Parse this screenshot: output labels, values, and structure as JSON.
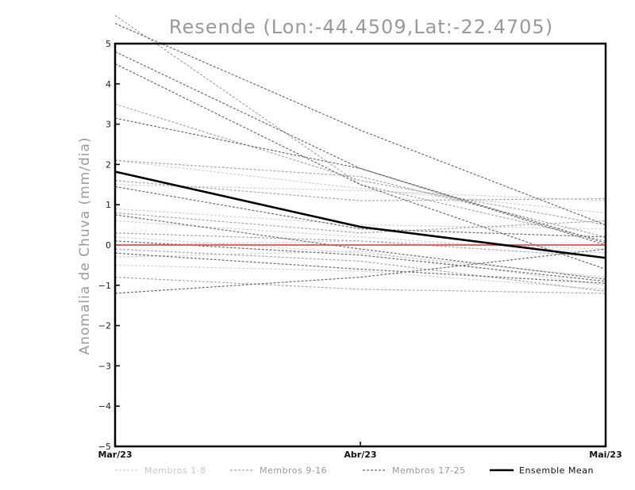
{
  "chart_data": {
    "type": "line",
    "title": "Resende (Lon:-44.4509,Lat:-22.4705)",
    "ylabel": "Anomalia de Chuva (mm/dia)",
    "xlabel": "",
    "categories": [
      "Mar/23",
      "Abr/23",
      "Mai/23"
    ],
    "ylim": [
      -5,
      5
    ],
    "yticks": [
      -5,
      -4,
      -3,
      -2,
      -1,
      0,
      1,
      2,
      3,
      4,
      5
    ],
    "zero_line_color": "#e05050",
    "legend_position": "bottom",
    "groups": [
      {
        "name": "Membros 1-8",
        "color": "#d2d2d2"
      },
      {
        "name": "Membros 9-16",
        "color": "#a9a9a9"
      },
      {
        "name": "Membros 17-25",
        "color": "#6e6e6e"
      },
      {
        "name": "Ensemble Mean",
        "color": "#000000"
      }
    ],
    "series": [
      {
        "group": 0,
        "values": [
          2.1,
          1.4,
          0.8
        ]
      },
      {
        "group": 0,
        "values": [
          1.5,
          1.35,
          1.1
        ]
      },
      {
        "group": 0,
        "values": [
          0.9,
          0.5,
          0.4
        ]
      },
      {
        "group": 0,
        "values": [
          0.6,
          0.2,
          -0.2
        ]
      },
      {
        "group": 0,
        "values": [
          0.0,
          0.1,
          -0.1
        ]
      },
      {
        "group": 0,
        "values": [
          -0.3,
          -0.15,
          -1.0
        ]
      },
      {
        "group": 0,
        "values": [
          -0.5,
          -0.65,
          -1.1
        ]
      },
      {
        "group": 0,
        "values": [
          0.2,
          -0.2,
          -0.8
        ]
      },
      {
        "group": 1,
        "values": [
          5.7,
          1.5,
          0.1
        ]
      },
      {
        "group": 1,
        "values": [
          3.5,
          1.6,
          0.5
        ]
      },
      {
        "group": 1,
        "values": [
          2.1,
          1.7,
          0.2
        ]
      },
      {
        "group": 1,
        "values": [
          1.6,
          1.1,
          1.15
        ]
      },
      {
        "group": 1,
        "values": [
          0.8,
          0.3,
          0.6
        ]
      },
      {
        "group": 1,
        "values": [
          0.3,
          0.1,
          -0.3
        ]
      },
      {
        "group": 1,
        "values": [
          -0.1,
          -0.4,
          -1.15
        ]
      },
      {
        "group": 1,
        "values": [
          -0.8,
          -1.1,
          -1.2
        ]
      },
      {
        "group": 2,
        "values": [
          5.5,
          2.85,
          0.5
        ]
      },
      {
        "group": 2,
        "values": [
          4.8,
          1.9,
          0.0
        ]
      },
      {
        "group": 2,
        "values": [
          4.5,
          1.5,
          -0.6
        ]
      },
      {
        "group": 2,
        "values": [
          3.15,
          1.9,
          0.05
        ]
      },
      {
        "group": 2,
        "values": [
          1.45,
          0.4,
          0.2
        ]
      },
      {
        "group": 2,
        "values": [
          0.75,
          -0.1,
          -0.85
        ]
      },
      {
        "group": 2,
        "values": [
          0.1,
          -0.25,
          -0.9
        ]
      },
      {
        "group": 2,
        "values": [
          -0.2,
          -0.6,
          -0.95
        ]
      },
      {
        "group": 2,
        "values": [
          -1.2,
          -0.8,
          -0.1
        ]
      }
    ],
    "ensemble_mean": {
      "name": "Ensemble Mean",
      "values": [
        1.82,
        0.45,
        -0.32
      ]
    }
  }
}
